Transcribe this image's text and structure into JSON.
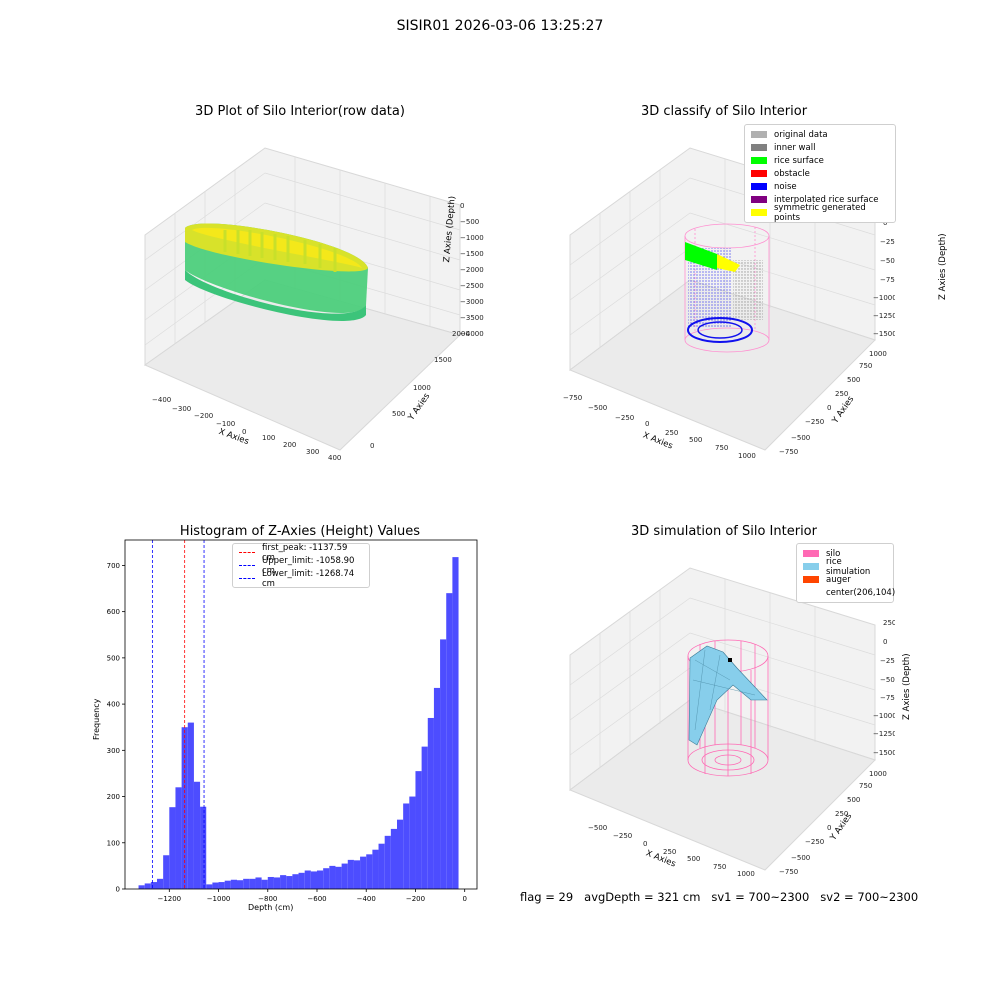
{
  "figure_title": "SISIR01 2026-03-06 13:25:27",
  "footer": {
    "flag": "flag = 29",
    "avg_depth": "avgDepth = 321 cm",
    "sv1": "sv1 = 700~2300",
    "sv2": "sv2 = 700~2300"
  },
  "chart_data": [
    {
      "type": "scatter",
      "projection": "3d",
      "title": "3D Plot of Silo Interior(row data)",
      "xlabel": "X Axies",
      "ylabel": "Y Axies",
      "zlabel": "Z Axies (Depth)",
      "x_ticks": [
        "−400",
        "−300",
        "−200",
        "−100",
        "0",
        "100",
        "200",
        "300",
        "400"
      ],
      "y_ticks": [
        "0",
        "500",
        "1000",
        "1500",
        "2000"
      ],
      "z_ticks": [
        "0",
        "−500",
        "−1000",
        "−1500",
        "−2000",
        "−2500",
        "−3000",
        "−3500",
        "−4000"
      ],
      "colormap": "viridis (green to yellow)",
      "colors": {
        "low": "#3cc47a",
        "high": "#f5e51b"
      }
    },
    {
      "type": "scatter",
      "projection": "3d",
      "title": "3D classify of Silo Interior",
      "xlabel": "X Axies",
      "ylabel": "Y Axies",
      "zlabel": "Z Axies (Depth)",
      "x_ticks": [
        "−750",
        "−500",
        "−250",
        "0",
        "250",
        "500",
        "750",
        "1000"
      ],
      "y_ticks": [
        "−750",
        "−500",
        "−250",
        "0",
        "250",
        "500",
        "750",
        "1000"
      ],
      "z_ticks": [
        "0",
        "−250",
        "−500",
        "−750",
        "−1000",
        "−1250",
        "−1500"
      ],
      "legend": [
        {
          "label": "original data",
          "color": "#b0b0b0"
        },
        {
          "label": "inner wall",
          "color": "#808080"
        },
        {
          "label": "rice surface",
          "color": "#00ff00"
        },
        {
          "label": "obstacle",
          "color": "#ff0000"
        },
        {
          "label": "noise",
          "color": "#0000ff"
        },
        {
          "label": "interpolated rice surface",
          "color": "#800080"
        },
        {
          "label": "symmetric generated points",
          "color": "#ffff00"
        }
      ],
      "legend_position": "top-right"
    },
    {
      "type": "bar",
      "title": "Histogram of Z-Axies (Height) Values",
      "xlabel": "Depth (cm)",
      "ylabel": "Frequency",
      "xlim": [
        -1380,
        50
      ],
      "ylim": [
        0,
        755
      ],
      "x_ticks": [
        -1200,
        -1000,
        -800,
        -600,
        -400,
        -200,
        0
      ],
      "x_tick_labels": [
        "−1200",
        "−1000",
        "−800",
        "−600",
        "−400",
        "−200",
        "0"
      ],
      "y_ticks": [
        0,
        100,
        200,
        300,
        400,
        500,
        600,
        700
      ],
      "bin_width": 25,
      "bin_starts": [
        -1325,
        -1300,
        -1275,
        -1250,
        -1225,
        -1200,
        -1175,
        -1150,
        -1125,
        -1100,
        -1075,
        -1050,
        -1025,
        -1000,
        -975,
        -950,
        -925,
        -900,
        -875,
        -850,
        -825,
        -800,
        -775,
        -750,
        -725,
        -700,
        -675,
        -650,
        -625,
        -600,
        -575,
        -550,
        -525,
        -500,
        -475,
        -450,
        -425,
        -400,
        -375,
        -350,
        -325,
        -300,
        -275,
        -250,
        -225,
        -200,
        -175,
        -150,
        -125,
        -100,
        -75,
        -50,
        -25
      ],
      "values": [
        8,
        12,
        15,
        22,
        73,
        177,
        220,
        350,
        360,
        232,
        178,
        10,
        14,
        15,
        18,
        20,
        19,
        22,
        22,
        25,
        20,
        26,
        25,
        30,
        28,
        32,
        35,
        40,
        38,
        40,
        45,
        50,
        48,
        55,
        63,
        62,
        70,
        75,
        85,
        98,
        115,
        130,
        150,
        185,
        200,
        255,
        308,
        370,
        435,
        540,
        640,
        718,
        0
      ],
      "bar_color": "#4d4dff",
      "vlines": [
        {
          "label": "first_peak: -1137.59 cm",
          "x": -1137.59,
          "color": "#ff0000"
        },
        {
          "label": "Upper_limit: -1058.90 cm",
          "x": -1058.9,
          "color": "#0000ff"
        },
        {
          "label": "Lower_limit: -1268.74 cm",
          "x": -1268.74,
          "color": "#0000ff"
        }
      ],
      "legend_position": "top-center"
    },
    {
      "type": "surface",
      "projection": "3d",
      "title": "3D simulation of Silo Interior",
      "xlabel": "X Axies",
      "ylabel": "Y Axies",
      "zlabel": "Z Axies (Depth)",
      "x_ticks": [
        "−500",
        "−250",
        "0",
        "250",
        "500",
        "750",
        "1000"
      ],
      "y_ticks": [
        "−750",
        "−500",
        "−250",
        "0",
        "250",
        "500",
        "750",
        "1000"
      ],
      "z_ticks": [
        "250",
        "0",
        "−250",
        "−500",
        "−750",
        "−1000",
        "−1250",
        "−1500"
      ],
      "legend": [
        {
          "label": "silo",
          "color": "#ff69b4"
        },
        {
          "label": "rice simulation",
          "color": "#87ceeb"
        },
        {
          "label": "auger",
          "color": "#ff4500"
        },
        {
          "label": "center(206,104)",
          "color": ""
        }
      ],
      "legend_position": "top-right"
    }
  ]
}
